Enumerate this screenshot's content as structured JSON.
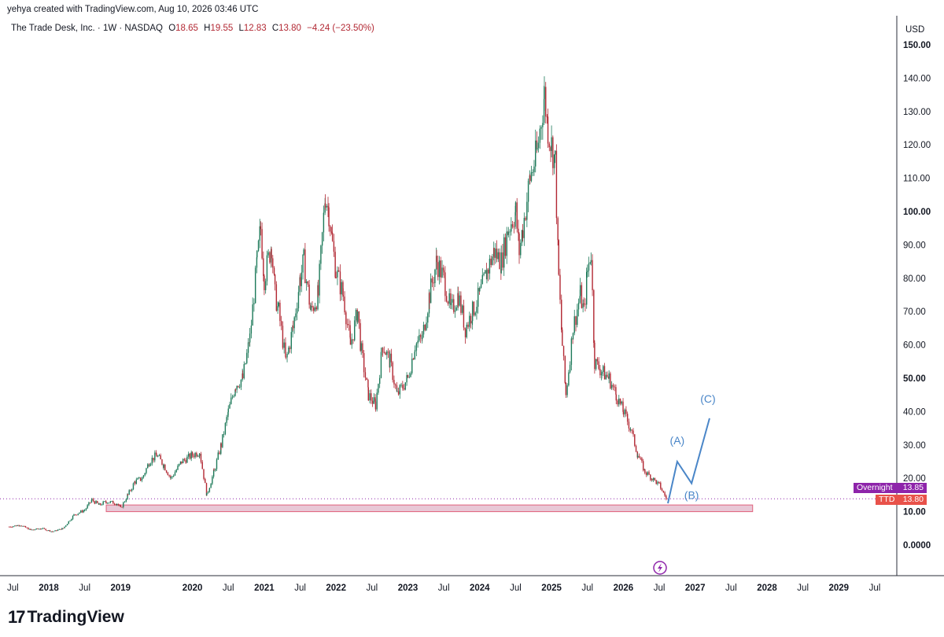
{
  "header": {
    "attribution": "yehya created with TradingView.com, Aug 10, 2026 03:46 UTC"
  },
  "legend": {
    "symbol": "The Trade Desk, Inc. · 1W · NASDAQ",
    "open_label": "O",
    "open": "18.65",
    "high_label": "H",
    "high": "19.55",
    "low_label": "L",
    "low": "12.83",
    "close_label": "C",
    "close": "13.80",
    "change": "−4.24 (−23.50%)"
  },
  "colors": {
    "up_candle": "#1e7a5a",
    "down_candle": "#b22833",
    "wave": "#4a86c8",
    "zone_fill": "#e8c8d6",
    "zone_border": "#e0607a",
    "overnight_tag": "#8e24aa",
    "ttd_tag": "#e8524a"
  },
  "price_tags": {
    "overnight_label": "Overnight",
    "overnight_value": "13.85",
    "ttd_label": "TTD",
    "ttd_value": "13.80"
  },
  "footer": {
    "brand": "TradingView",
    "logo_mark": "17"
  },
  "chart_data": {
    "type": "candlestick",
    "title": "The Trade Desk, Inc. · 1W · NASDAQ",
    "currency": "USD",
    "ylim": [
      -10,
      158
    ],
    "y_ticks": [
      "150.00",
      "140.00",
      "130.00",
      "120.00",
      "110.00",
      "100.00",
      "90.00",
      "80.00",
      "70.00",
      "60.00",
      "50.00",
      "40.00",
      "30.00",
      "20.00",
      "10.00",
      "0.0000"
    ],
    "y_tick_values": [
      150,
      140,
      130,
      120,
      110,
      100,
      90,
      80,
      70,
      60,
      50,
      40,
      30,
      20,
      10,
      0
    ],
    "bold_ticks": [
      "150.00",
      "100.00",
      "50.00",
      "10.00",
      "0.0000"
    ],
    "x_ticks": [
      "Jul",
      "2018",
      "Jul",
      "2019",
      "2020",
      "Jul",
      "2021",
      "Jul",
      "2022",
      "Jul",
      "2023",
      "Jul",
      "2024",
      "Jul",
      "2025",
      "Jul",
      "2026",
      "Jul",
      "2027",
      "Jul",
      "2028",
      "Jul",
      "2029",
      "Jul"
    ],
    "x_tick_dates": [
      2017.5,
      2018.0,
      2018.5,
      2019.0,
      2020.0,
      2020.5,
      2021.0,
      2021.5,
      2022.0,
      2022.5,
      2023.0,
      2023.5,
      2024.0,
      2024.5,
      2025.0,
      2025.5,
      2026.0,
      2026.5,
      2027.0,
      2027.5,
      2028.0,
      2028.5,
      2029.0,
      2029.5
    ],
    "bold_x_ticks": [
      "2018",
      "2019",
      "2020",
      "2021",
      "2022",
      "2023",
      "2024",
      "2025",
      "2026",
      "2027",
      "2028",
      "2029"
    ],
    "price_path": [
      [
        2017.45,
        5.5
      ],
      [
        2017.6,
        6.0
      ],
      [
        2017.75,
        4.5
      ],
      [
        2017.9,
        5.0
      ],
      [
        2018.05,
        4.0
      ],
      [
        2018.2,
        5.0
      ],
      [
        2018.35,
        9.0
      ],
      [
        2018.5,
        10.5
      ],
      [
        2018.6,
        13.5
      ],
      [
        2018.7,
        12.0
      ],
      [
        2018.8,
        13.0
      ],
      [
        2018.95,
        12.5
      ],
      [
        2019.0,
        11.0
      ],
      [
        2019.1,
        15.0
      ],
      [
        2019.2,
        19.0
      ],
      [
        2019.3,
        20.0
      ],
      [
        2019.4,
        25.0
      ],
      [
        2019.5,
        27.0
      ],
      [
        2019.6,
        24.0
      ],
      [
        2019.7,
        20.0
      ],
      [
        2019.85,
        25.0
      ],
      [
        2020.0,
        27.0
      ],
      [
        2020.1,
        28.0
      ],
      [
        2020.2,
        15.0
      ],
      [
        2020.3,
        22.0
      ],
      [
        2020.4,
        30.0
      ],
      [
        2020.5,
        40.0
      ],
      [
        2020.6,
        48.0
      ],
      [
        2020.7,
        50.0
      ],
      [
        2020.8,
        62.0
      ],
      [
        2020.9,
        85.0
      ],
      [
        2020.95,
        95.0
      ],
      [
        2021.0,
        80.0
      ],
      [
        2021.1,
        90.0
      ],
      [
        2021.15,
        75.0
      ],
      [
        2021.2,
        70.0
      ],
      [
        2021.3,
        55.0
      ],
      [
        2021.4,
        65.0
      ],
      [
        2021.5,
        80.0
      ],
      [
        2021.55,
        85.0
      ],
      [
        2021.65,
        70.0
      ],
      [
        2021.75,
        75.0
      ],
      [
        2021.85,
        105.0
      ],
      [
        2021.9,
        100.0
      ],
      [
        2021.95,
        90.0
      ],
      [
        2022.0,
        82.0
      ],
      [
        2022.1,
        75.0
      ],
      [
        2022.2,
        60.0
      ],
      [
        2022.3,
        70.0
      ],
      [
        2022.35,
        58.0
      ],
      [
        2022.45,
        45.0
      ],
      [
        2022.55,
        42.0
      ],
      [
        2022.65,
        60.0
      ],
      [
        2022.75,
        55.0
      ],
      [
        2022.85,
        45.0
      ],
      [
        2023.0,
        50.0
      ],
      [
        2023.1,
        60.0
      ],
      [
        2023.2,
        62.0
      ],
      [
        2023.3,
        75.0
      ],
      [
        2023.4,
        85.0
      ],
      [
        2023.5,
        80.0
      ],
      [
        2023.6,
        70.0
      ],
      [
        2023.7,
        75.0
      ],
      [
        2023.8,
        65.0
      ],
      [
        2023.9,
        70.0
      ],
      [
        2024.0,
        75.0
      ],
      [
        2024.1,
        82.0
      ],
      [
        2024.2,
        88.0
      ],
      [
        2024.3,
        85.0
      ],
      [
        2024.4,
        95.0
      ],
      [
        2024.5,
        100.0
      ],
      [
        2024.55,
        88.0
      ],
      [
        2024.6,
        95.0
      ],
      [
        2024.7,
        110.0
      ],
      [
        2024.8,
        118.0
      ],
      [
        2024.9,
        135.0
      ],
      [
        2024.95,
        125.0
      ],
      [
        2025.0,
        120.0
      ],
      [
        2025.05,
        115.0
      ],
      [
        2025.1,
        80.0
      ],
      [
        2025.15,
        60.0
      ],
      [
        2025.2,
        45.0
      ],
      [
        2025.3,
        65.0
      ],
      [
        2025.4,
        75.0
      ],
      [
        2025.45,
        70.0
      ],
      [
        2025.5,
        82.0
      ],
      [
        2025.55,
        88.0
      ],
      [
        2025.6,
        55.0
      ],
      [
        2025.7,
        52.0
      ],
      [
        2025.8,
        50.0
      ],
      [
        2025.9,
        45.0
      ],
      [
        2026.0,
        40.0
      ],
      [
        2026.1,
        35.0
      ],
      [
        2026.2,
        27.0
      ],
      [
        2026.3,
        22.0
      ],
      [
        2026.4,
        20.0
      ],
      [
        2026.5,
        18.0
      ],
      [
        2026.6,
        13.8
      ]
    ],
    "support_zone": {
      "x_start": 2018.8,
      "x_end": 2027.8,
      "y_low": 10.0,
      "y_high": 12.0
    },
    "overnight_line": 13.85,
    "wave_projection": {
      "points": [
        [
          2026.62,
          12.5
        ],
        [
          2026.75,
          25.0
        ],
        [
          2026.95,
          18.5
        ],
        [
          2027.2,
          38.0
        ]
      ],
      "labels": [
        "(A)",
        "(B)",
        "(C)"
      ]
    }
  }
}
